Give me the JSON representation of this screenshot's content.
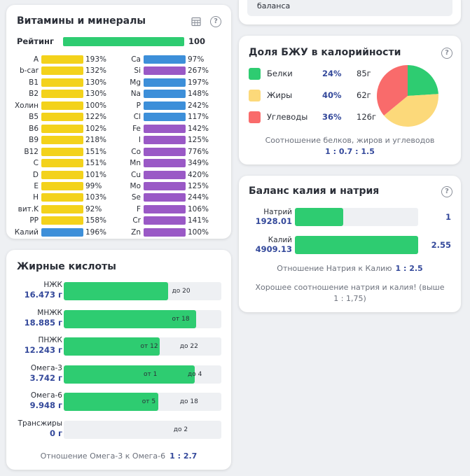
{
  "vitamins": {
    "title": "Витамины и минералы",
    "rating_label": "Рейтинг",
    "rating_value": "100",
    "rating_fraction": 1.0,
    "left": [
      {
        "name": "A",
        "pct": "193%",
        "color": "#f3d21b"
      },
      {
        "name": "b-car",
        "pct": "132%",
        "color": "#f3d21b"
      },
      {
        "name": "B1",
        "pct": "130%",
        "color": "#f3d21b"
      },
      {
        "name": "B2",
        "pct": "130%",
        "color": "#f3d21b"
      },
      {
        "name": "Холин",
        "pct": "100%",
        "color": "#f3d21b"
      },
      {
        "name": "B5",
        "pct": "122%",
        "color": "#f3d21b"
      },
      {
        "name": "B6",
        "pct": "102%",
        "color": "#f3d21b"
      },
      {
        "name": "B9",
        "pct": "218%",
        "color": "#f3d21b"
      },
      {
        "name": "B12",
        "pct": "151%",
        "color": "#f3d21b"
      },
      {
        "name": "C",
        "pct": "151%",
        "color": "#f3d21b"
      },
      {
        "name": "D",
        "pct": "101%",
        "color": "#f3d21b"
      },
      {
        "name": "E",
        "pct": "99%",
        "color": "#f3d21b"
      },
      {
        "name": "H",
        "pct": "103%",
        "color": "#f3d21b"
      },
      {
        "name": "вит.K",
        "pct": "92%",
        "color": "#f3d21b"
      },
      {
        "name": "PP",
        "pct": "158%",
        "color": "#f3d21b"
      },
      {
        "name": "Калий",
        "pct": "196%",
        "color": "#3d8fd9"
      }
    ],
    "right": [
      {
        "name": "Ca",
        "pct": "97%",
        "color": "#3d8fd9"
      },
      {
        "name": "Si",
        "pct": "267%",
        "color": "#9a59c6"
      },
      {
        "name": "Mg",
        "pct": "197%",
        "color": "#3d8fd9"
      },
      {
        "name": "Na",
        "pct": "148%",
        "color": "#3d8fd9"
      },
      {
        "name": "P",
        "pct": "242%",
        "color": "#3d8fd9"
      },
      {
        "name": "Cl",
        "pct": "117%",
        "color": "#3d8fd9"
      },
      {
        "name": "Fe",
        "pct": "142%",
        "color": "#9a59c6"
      },
      {
        "name": "I",
        "pct": "125%",
        "color": "#9a59c6"
      },
      {
        "name": "Co",
        "pct": "776%",
        "color": "#9a59c6"
      },
      {
        "name": "Mn",
        "pct": "349%",
        "color": "#9a59c6"
      },
      {
        "name": "Cu",
        "pct": "420%",
        "color": "#9a59c6"
      },
      {
        "name": "Mo",
        "pct": "125%",
        "color": "#9a59c6"
      },
      {
        "name": "Se",
        "pct": "244%",
        "color": "#9a59c6"
      },
      {
        "name": "F",
        "pct": "106%",
        "color": "#9a59c6"
      },
      {
        "name": "Cr",
        "pct": "141%",
        "color": "#9a59c6"
      },
      {
        "name": "Zn",
        "pct": "100%",
        "color": "#9a59c6"
      }
    ]
  },
  "fatty_acids": {
    "title": "Жирные кислоты",
    "rows": [
      {
        "name": "НЖК",
        "value": "16.473 г",
        "fill": 0.66,
        "markers": [
          {
            "label": "до 20",
            "pos": 0.74
          }
        ]
      },
      {
        "name": "МНЖК",
        "value": "18.885 г",
        "fill": 0.84,
        "markers": [
          {
            "label": "от 18",
            "pos": 0.74
          }
        ]
      },
      {
        "name": "ПНЖК",
        "value": "12.243 г",
        "fill": 0.61,
        "markers": [
          {
            "label": "от 12",
            "pos": 0.54
          },
          {
            "label": "до 22",
            "pos": 0.79
          }
        ]
      },
      {
        "name": "Омега-3",
        "value": "3.742 г",
        "fill": 0.83,
        "markers": [
          {
            "label": "от 1",
            "pos": 0.56
          },
          {
            "label": "до 4",
            "pos": 0.84
          }
        ]
      },
      {
        "name": "Омега-6",
        "value": "9.948 г",
        "fill": 0.6,
        "markers": [
          {
            "label": "от 5",
            "pos": 0.55
          },
          {
            "label": "до 18",
            "pos": 0.79
          }
        ]
      },
      {
        "name": "Трансжиры",
        "value": "0 г",
        "fill": 0.0,
        "markers": [
          {
            "label": "до 2",
            "pos": 0.75
          }
        ]
      }
    ],
    "ratio_label": "Отношение Омега-3 к Омега-6",
    "ratio_value": "1 : 2.7"
  },
  "top_card": {
    "text": "баланса"
  },
  "macros": {
    "title": "Доля БЖУ в калорийности",
    "rows": [
      {
        "name": "Белки",
        "pct": "24%",
        "grams": "85г",
        "color": "#2ecc71",
        "share": 24
      },
      {
        "name": "Жиры",
        "pct": "40%",
        "grams": "62г",
        "color": "#fcd97a",
        "share": 40
      },
      {
        "name": "Углеводы",
        "pct": "36%",
        "grams": "126г",
        "color": "#f96b6b",
        "share": 36
      }
    ],
    "note": "Соотношение белков, жиров и углеводов",
    "ratio": "1 : 0.7 : 1.5"
  },
  "balance": {
    "title": "Баланс калия и натрия",
    "sodium": {
      "name": "Натрий",
      "value": "1928.01",
      "right": "1",
      "fill": 0.39
    },
    "potassium": {
      "name": "Калий",
      "value": "4909.13",
      "right": "2.55",
      "fill": 1.0
    },
    "ratio_label": "Отношение Натрия к Калию",
    "ratio_value": "1 : 2.5",
    "note": "Хорошее соотношение натрия и калия! (выше 1 : 1,75)"
  }
}
